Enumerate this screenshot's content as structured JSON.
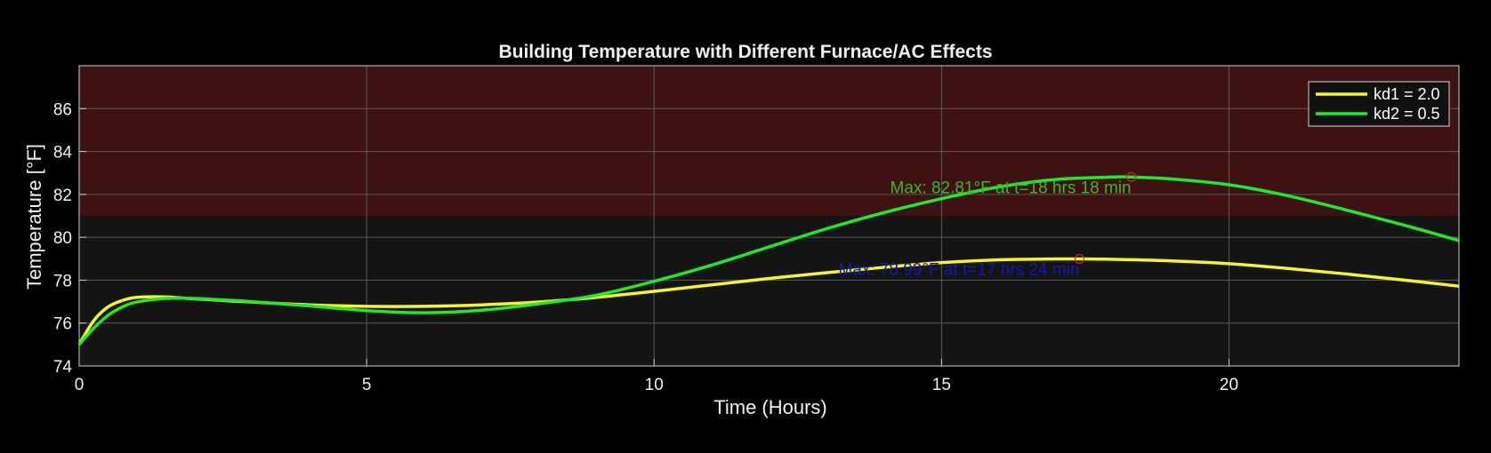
{
  "chart_data": {
    "type": "line",
    "title": "Building Temperature with Different Furnace/AC Effects",
    "xlabel": "Time (Hours)",
    "ylabel": "Temperature [°F]",
    "xlim": [
      0,
      24
    ],
    "ylim": [
      74,
      88
    ],
    "xticks": [
      0,
      5,
      10,
      15,
      20
    ],
    "yticks": [
      74,
      76,
      78,
      80,
      82,
      84,
      86
    ],
    "grid": true,
    "legend_position": "top-right",
    "shaded_regions": [
      {
        "from": 81,
        "to": 88,
        "color": "#3f1212"
      }
    ],
    "series": [
      {
        "name": "kd1 = 2.0",
        "color": "#f5f52a",
        "x": [
          0,
          0.25,
          0.5,
          0.75,
          1,
          1.5,
          2,
          3,
          4,
          5,
          6,
          7,
          8,
          9,
          10,
          11,
          12,
          13,
          14,
          15,
          16,
          17,
          17.4,
          18,
          19,
          20,
          21,
          22,
          23,
          24
        ],
        "y": [
          75.0,
          76.1,
          76.75,
          77.05,
          77.2,
          77.22,
          77.13,
          76.98,
          76.85,
          76.78,
          76.78,
          76.85,
          76.98,
          77.2,
          77.48,
          77.78,
          78.08,
          78.35,
          78.6,
          78.82,
          78.95,
          78.99,
          78.99,
          78.97,
          78.9,
          78.77,
          78.55,
          78.3,
          78.02,
          77.72
        ]
      },
      {
        "name": "kd2 = 0.5",
        "color": "#22e82a",
        "x": [
          0,
          0.25,
          0.5,
          0.75,
          1,
          1.5,
          2,
          3,
          4,
          5,
          6,
          7,
          8,
          9,
          10,
          11,
          12,
          13,
          14,
          15,
          16,
          17,
          18,
          18.3,
          19,
          20,
          21,
          22,
          23,
          24
        ],
        "y": [
          75.0,
          75.75,
          76.35,
          76.75,
          76.98,
          77.15,
          77.15,
          77.0,
          76.8,
          76.58,
          76.48,
          76.6,
          76.9,
          77.3,
          77.95,
          78.7,
          79.55,
          80.4,
          81.15,
          81.8,
          82.35,
          82.7,
          82.81,
          82.81,
          82.72,
          82.45,
          81.95,
          81.3,
          80.6,
          79.85
        ]
      }
    ],
    "annotations": [
      {
        "text": "Max: 82.81°F at t=18 hrs 18 min",
        "x": 18.3,
        "y": 82.81,
        "color": "#3fb52a"
      },
      {
        "text": "Max: 78.99°F at t=17 hrs 24 min",
        "x": 17.4,
        "y": 78.99,
        "color": "#1418b8"
      }
    ],
    "marker_color": "#c0312a",
    "legend": [
      "kd1 = 2.0",
      "kd2 = 0.5"
    ]
  }
}
